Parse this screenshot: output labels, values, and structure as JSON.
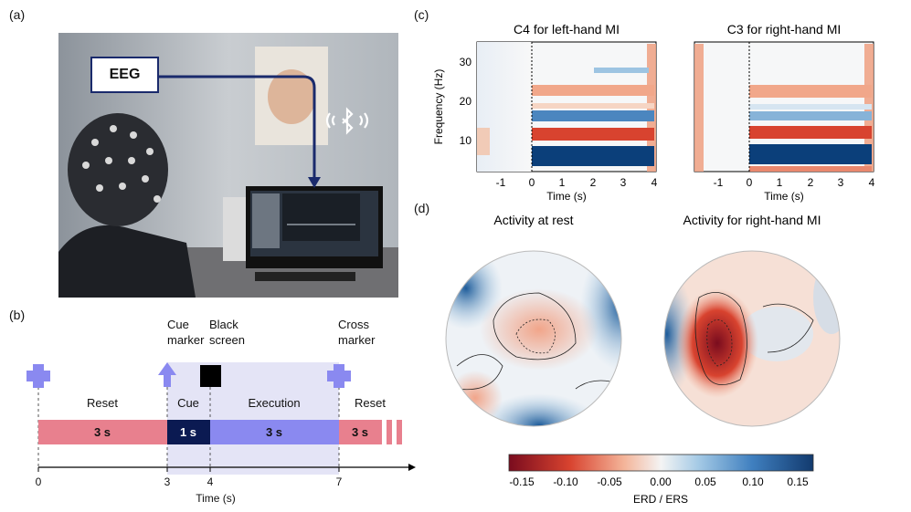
{
  "panels": {
    "a": "(a)",
    "b": "(b)",
    "c": "(c)",
    "d": "(d)"
  },
  "photo": {
    "eeg_label": "EEG",
    "bluetooth_icon": "bluetooth-icon"
  },
  "timeline": {
    "labels_top": [
      {
        "line1": "Cue",
        "line2": "marker"
      },
      {
        "line1": "Black",
        "line2": "screen"
      },
      {
        "line1": "Cross",
        "line2": "marker"
      }
    ],
    "phase_labels": [
      "Reset",
      "Cue",
      "Execution",
      "Reset"
    ],
    "bar_labels": [
      "3 s",
      "1 s",
      "3 s",
      "3 s"
    ],
    "axis_ticks": [
      "0",
      "3",
      "4",
      "7"
    ],
    "axis_label": "Time (s)",
    "colors": {
      "reset": "#e8808e",
      "cue": "#0b1a52",
      "execution": "#8a89f0",
      "shade": "#e4e4f6",
      "marker": "#8a89f0"
    }
  },
  "spectrograms": [
    {
      "title": "C4 for left-hand MI",
      "ylabel": "Frequency (Hz)",
      "xlabel": "Time (s)",
      "xticks": [
        "-1",
        "0",
        "1",
        "2",
        "3",
        "4"
      ],
      "yticks": [
        "10",
        "20",
        "30"
      ]
    },
    {
      "title": "C3 for right-hand MI",
      "xlabel": "Time (s)",
      "xticks": [
        "-1",
        "0",
        "1",
        "2",
        "3",
        "4"
      ]
    }
  ],
  "topomaps": [
    {
      "title": "Activity at rest"
    },
    {
      "title": "Activity for right-hand MI"
    }
  ],
  "colorbar": {
    "ticks": [
      "-0.15",
      "-0.10",
      "-0.05",
      "0.00",
      "0.05",
      "0.10",
      "0.15"
    ],
    "label": "ERD / ERS",
    "min_color": "#7a0c1e",
    "mid_color": "#f4f4f4",
    "max_color": "#123a6e"
  }
}
